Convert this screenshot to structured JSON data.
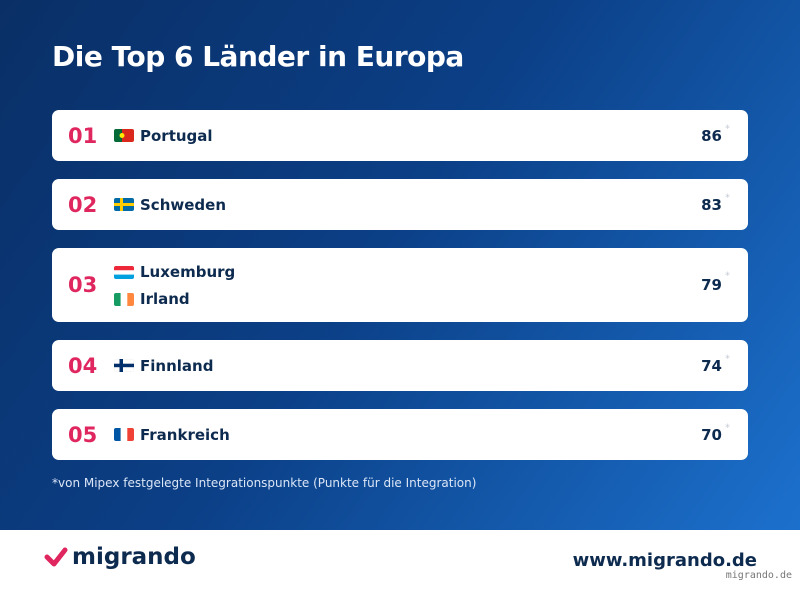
{
  "header": {
    "title": "Die Top 6 Länder in Europa"
  },
  "ranking": {
    "score_marker": "*",
    "rows": [
      {
        "rank": "01",
        "countries": [
          "Portugal"
        ],
        "score": "86"
      },
      {
        "rank": "02",
        "countries": [
          "Schweden"
        ],
        "score": "83"
      },
      {
        "rank": "03",
        "countries": [
          "Luxemburg",
          "Irland"
        ],
        "score": "79"
      },
      {
        "rank": "04",
        "countries": [
          "Finnland"
        ],
        "score": "74"
      },
      {
        "rank": "05",
        "countries": [
          "Frankreich"
        ],
        "score": "70"
      }
    ]
  },
  "footnote": "*von Mipex festgelegte Integrationspunkte  (Punkte für die Integration)",
  "footer": {
    "logo": "migrando",
    "url": "www.migrando.de",
    "watermark": "migrando.de"
  }
}
